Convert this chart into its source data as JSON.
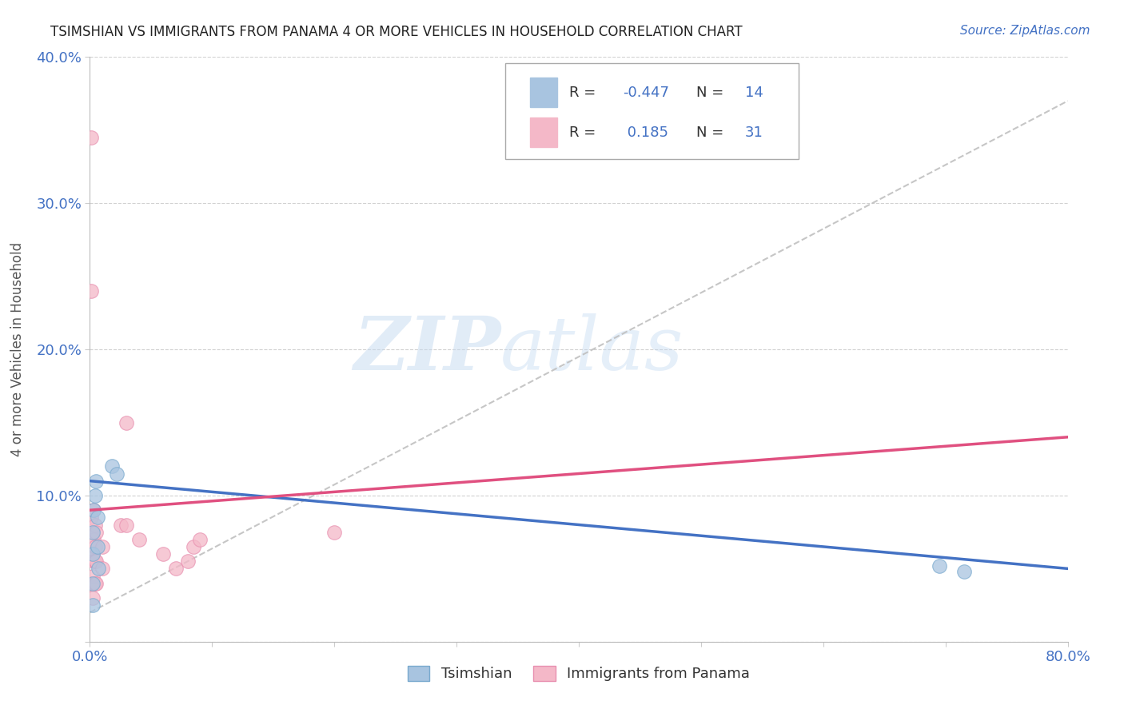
{
  "title": "TSIMSHIAN VS IMMIGRANTS FROM PANAMA 4 OR MORE VEHICLES IN HOUSEHOLD CORRELATION CHART",
  "source": "Source: ZipAtlas.com",
  "ylabel": "4 or more Vehicles in Household",
  "xmin": 0.0,
  "xmax": 0.8,
  "ymin": 0.0,
  "ymax": 0.4,
  "tsimshian_color": "#a8c4e0",
  "tsimshian_edge_color": "#7aaace",
  "panama_color": "#f4b8c8",
  "panama_edge_color": "#e890b0",
  "tsimshian_line_color": "#4472c4",
  "panama_line_color": "#e05080",
  "trend_line_color": "#c0c0c0",
  "R_tsimshian": -0.447,
  "N_tsimshian": 14,
  "R_panama": 0.185,
  "N_panama": 31,
  "tsimshian_points_x": [
    0.002,
    0.002,
    0.002,
    0.002,
    0.003,
    0.004,
    0.005,
    0.006,
    0.006,
    0.007,
    0.018,
    0.022,
    0.695,
    0.715
  ],
  "tsimshian_points_y": [
    0.025,
    0.04,
    0.06,
    0.075,
    0.09,
    0.1,
    0.11,
    0.085,
    0.065,
    0.05,
    0.12,
    0.115,
    0.052,
    0.048
  ],
  "panama_points_x": [
    0.001,
    0.001,
    0.001,
    0.001,
    0.001,
    0.002,
    0.002,
    0.002,
    0.002,
    0.003,
    0.003,
    0.003,
    0.004,
    0.004,
    0.004,
    0.004,
    0.005,
    0.005,
    0.005,
    0.01,
    0.01,
    0.025,
    0.03,
    0.03,
    0.04,
    0.06,
    0.07,
    0.08,
    0.085,
    0.09,
    0.2
  ],
  "panama_points_y": [
    0.345,
    0.24,
    0.085,
    0.06,
    0.04,
    0.075,
    0.06,
    0.045,
    0.03,
    0.09,
    0.07,
    0.055,
    0.08,
    0.065,
    0.055,
    0.04,
    0.075,
    0.055,
    0.04,
    0.065,
    0.05,
    0.08,
    0.15,
    0.08,
    0.07,
    0.06,
    0.05,
    0.055,
    0.065,
    0.07,
    0.075
  ],
  "legend_label_tsimshian": "Tsimshian",
  "legend_label_panama": "Immigrants from Panama",
  "watermark_zip": "ZIP",
  "watermark_atlas": "atlas",
  "background_color": "#ffffff",
  "grid_color": "#cccccc",
  "tsim_line_start_y": 0.11,
  "tsim_line_end_y": 0.05,
  "pan_line_start_y": 0.09,
  "pan_line_end_y": 0.14
}
